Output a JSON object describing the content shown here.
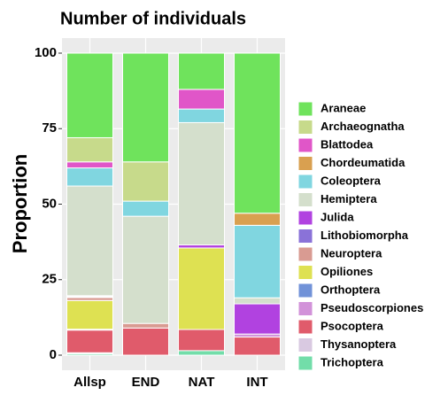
{
  "chart_data": {
    "type": "stacked_bar",
    "title": "Number of individuals",
    "y_label": "Proportion",
    "categories": [
      "Allsp",
      "END",
      "NAT",
      "INT"
    ],
    "ylim": [
      0,
      100
    ],
    "yticks": [
      0,
      25,
      50,
      75,
      100
    ],
    "grid": true,
    "series": [
      {
        "name": "Araneae",
        "color": "#6fe35c",
        "values": [
          28,
          36,
          12,
          53
        ]
      },
      {
        "name": "Archaeognatha",
        "color": "#c7da8b",
        "values": [
          8,
          13,
          0,
          0
        ]
      },
      {
        "name": "Blattodea",
        "color": "#e056c8",
        "values": [
          2,
          0,
          6.5,
          0
        ]
      },
      {
        "name": "Chordeumatida",
        "color": "#d9a050",
        "values": [
          0,
          0,
          0,
          4
        ]
      },
      {
        "name": "Coleoptera",
        "color": "#80d6e0",
        "values": [
          6,
          5,
          4.5,
          24
        ]
      },
      {
        "name": "Hemiptera",
        "color": "#d4dfcc",
        "values": [
          36.3,
          35.5,
          40.5,
          2
        ]
      },
      {
        "name": "Julida",
        "color": "#b142e0",
        "values": [
          0.3,
          0,
          1,
          10
        ]
      },
      {
        "name": "Lithobiomorpha",
        "color": "#8a72d8",
        "values": [
          0.3,
          0,
          0,
          0
        ]
      },
      {
        "name": "Neuroptera",
        "color": "#d99b92",
        "values": [
          1,
          1.5,
          0,
          0
        ]
      },
      {
        "name": "Opiliones",
        "color": "#dee152",
        "values": [
          9.5,
          0,
          27,
          0
        ]
      },
      {
        "name": "Orthoptera",
        "color": "#7192d8",
        "values": [
          0,
          0,
          0,
          0
        ]
      },
      {
        "name": "Pseudoscorpiones",
        "color": "#d292d9",
        "values": [
          0.3,
          0,
          0,
          1
        ]
      },
      {
        "name": "Psocoptera",
        "color": "#e05b6b",
        "values": [
          7.5,
          9,
          7,
          6
        ]
      },
      {
        "name": "Thysanoptera",
        "color": "#d9c9e1",
        "values": [
          0.3,
          0,
          0,
          0
        ]
      },
      {
        "name": "Trichoptera",
        "color": "#72dda9",
        "values": [
          0.5,
          0,
          1.5,
          0
        ]
      }
    ]
  }
}
